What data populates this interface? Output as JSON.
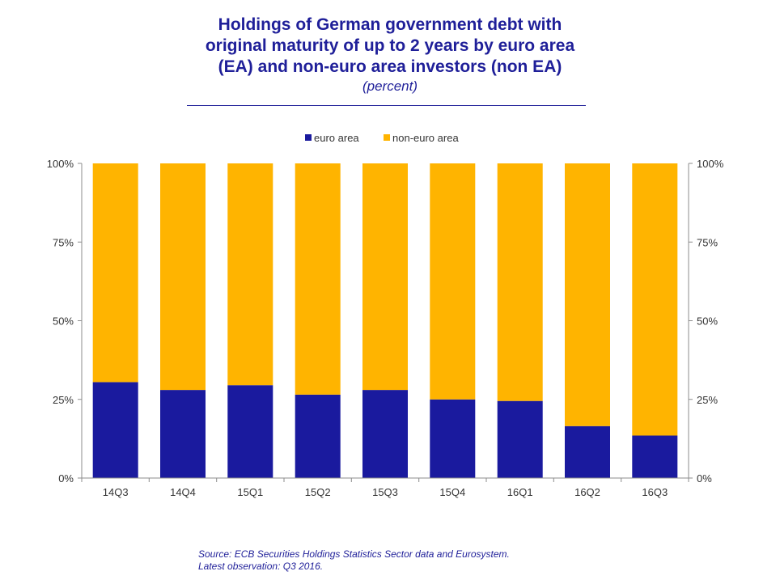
{
  "title": {
    "lines": [
      "Holdings of German government debt with",
      "original maturity of up to 2 years by euro area",
      "(EA) and non-euro area investors (non EA)"
    ],
    "subtitle": "(percent)"
  },
  "source": {
    "line1": "Source: ECB Securities Holdings  Statistics Sector data and Eurosystem.",
    "line2": "Latest observation: Q3 2016."
  },
  "colors": {
    "euro_area": "#1a1a9e",
    "non_euro_area": "#ffb400",
    "title": "#1f1f99",
    "axis": "#8c8c8c",
    "text": "#333333"
  },
  "chart_data": {
    "type": "bar",
    "stacked": true,
    "categories": [
      "14Q3",
      "14Q4",
      "15Q1",
      "15Q2",
      "15Q3",
      "15Q4",
      "16Q1",
      "16Q2",
      "16Q3"
    ],
    "series": [
      {
        "name": "euro area",
        "values": [
          30.5,
          28,
          29.5,
          26.5,
          28,
          25,
          24.5,
          16.5,
          13.5
        ]
      },
      {
        "name": "non-euro area",
        "values": [
          69.5,
          72,
          70.5,
          73.5,
          72,
          75,
          75.5,
          83.5,
          86.5
        ]
      }
    ],
    "ylim": [
      0,
      100
    ],
    "yticks": [
      "0%",
      "25%",
      "50%",
      "75%",
      "100%"
    ],
    "ytick_values": [
      0,
      25,
      50,
      75,
      100
    ],
    "secondary_y_axis": true,
    "legend_position": "top-center",
    "grid": false
  }
}
